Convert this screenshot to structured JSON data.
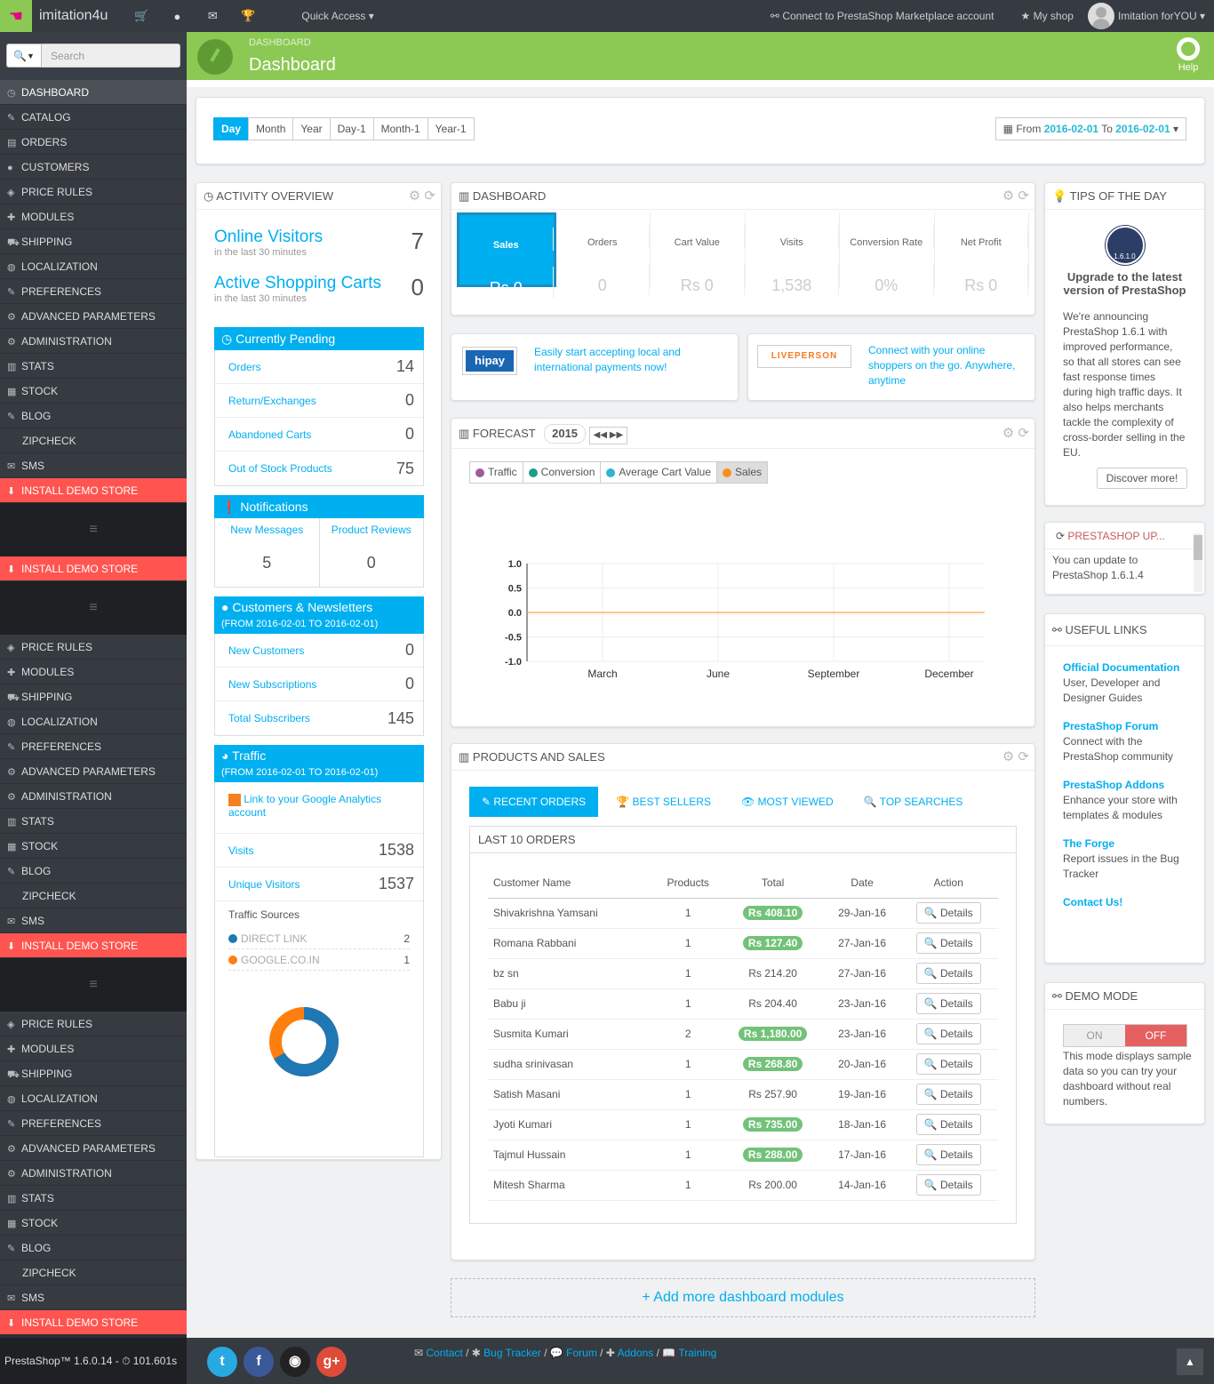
{
  "topbar": {
    "brand": "imitation4u",
    "quick_access": "Quick Access ▾",
    "connect": "Connect to PrestaShop Marketplace account",
    "my_shop": "My shop",
    "user": "Imitation forYOU ▾"
  },
  "sidebar": {
    "search_placeholder": "Search",
    "items": [
      "DASHBOARD",
      "CATALOG",
      "ORDERS",
      "CUSTOMERS",
      "PRICE RULES",
      "MODULES",
      "SHIPPING",
      "LOCALIZATION",
      "PREFERENCES",
      "ADVANCED PARAMETERS",
      "ADMINISTRATION",
      "STATS",
      "STOCK",
      "BLOG",
      "ZIPCHECK",
      "SMS"
    ],
    "repeat_items": [
      "PRICE RULES",
      "MODULES",
      "SHIPPING",
      "LOCALIZATION",
      "PREFERENCES",
      "ADVANCED PARAMETERS",
      "ADMINISTRATION",
      "STATS",
      "STOCK",
      "BLOG",
      "ZIPCHECK",
      "SMS"
    ],
    "demo": "INSTALL DEMO STORE",
    "footer": "PrestaShop™ 1.6.0.14 - ⏱ 101.601s"
  },
  "header": {
    "breadcrumb": "DASHBOARD",
    "title": "Dashboard",
    "help": "Help"
  },
  "datebar": {
    "buttons": [
      "Day",
      "Month",
      "Year",
      "Day-1",
      "Month-1",
      "Year-1"
    ],
    "from_label": "From",
    "from": "2016-02-01",
    "to_label": "To",
    "to": "2016-02-01"
  },
  "activity": {
    "title": "ACTIVITY OVERVIEW",
    "online_visitors": "Online Visitors",
    "online_visitors_value": "7",
    "online_sub": "in the last 30 minutes",
    "carts": "Active Shopping Carts",
    "carts_value": "0",
    "carts_sub": "in the last 30 minutes",
    "pending_title": "Currently Pending",
    "pending": [
      {
        "label": "Orders",
        "value": "14"
      },
      {
        "label": "Return/Exchanges",
        "value": "0"
      },
      {
        "label": "Abandoned Carts",
        "value": "0"
      },
      {
        "label": "Out of Stock Products",
        "value": "75"
      }
    ],
    "notif_title": "Notifications",
    "new_messages": "New Messages",
    "new_messages_value": "5",
    "product_reviews": "Product Reviews",
    "product_reviews_value": "0",
    "cust_title": "Customers & Newsletters",
    "cust_range": "(FROM 2016-02-01 TO 2016-02-01)",
    "cust": [
      {
        "label": "New Customers",
        "value": "0"
      },
      {
        "label": "New Subscriptions",
        "value": "0"
      },
      {
        "label": "Total Subscribers",
        "value": "145"
      }
    ],
    "traffic_title": "Traffic",
    "traffic_range": "(FROM 2016-02-01 TO 2016-02-01)",
    "ga_link": "Link to your Google Analytics account",
    "traffic": [
      {
        "label": "Visits",
        "value": "1538"
      },
      {
        "label": "Unique Visitors",
        "value": "1537"
      }
    ],
    "sources_title": "Traffic Sources",
    "sources": [
      {
        "label": "DIRECT LINK",
        "value": "2",
        "color": "#1f77b4"
      },
      {
        "label": "GOOGLE.CO.IN",
        "value": "1",
        "color": "#ff7f0e"
      }
    ]
  },
  "dashboard": {
    "title": "DASHBOARD",
    "kpis": [
      {
        "label": "Sales",
        "value": "Rs 0"
      },
      {
        "label": "Orders",
        "value": "0"
      },
      {
        "label": "Cart Value",
        "value": "Rs 0"
      },
      {
        "label": "Visits",
        "value": "1,538"
      },
      {
        "label": "Conversion Rate",
        "value": "0%"
      },
      {
        "label": "Net Profit",
        "value": "Rs 0"
      }
    ]
  },
  "ads": {
    "hipay_logo": "hipay",
    "hipay_text": "Easily start accepting local and international payments now!",
    "liveperson_logo": "LIVEPERSON",
    "liveperson_text": "Connect with your online shoppers on the go. Anywhere, anytime"
  },
  "forecast": {
    "title": "FORECAST",
    "year": "2015",
    "legend": [
      {
        "label": "Traffic",
        "color": "#9e5ba1"
      },
      {
        "label": "Conversion",
        "color": "#1a9e8f"
      },
      {
        "label": "Average Cart Value",
        "color": "#2fb5d2"
      },
      {
        "label": "Sales",
        "color": "#ff8c1a"
      }
    ]
  },
  "chart_data": {
    "type": "line",
    "x": [
      "March",
      "June",
      "September",
      "December"
    ],
    "yticks": [
      "1.0",
      "0.5",
      "0.0",
      "-0.5",
      "-1.0"
    ],
    "ylim": [
      -1,
      1
    ],
    "series": [
      {
        "name": "Sales",
        "values": [
          0,
          0,
          0,
          0
        ]
      }
    ]
  },
  "products": {
    "title": "PRODUCTS AND SALES",
    "tabs": [
      "RECENT ORDERS",
      "BEST SELLERS",
      "MOST VIEWED",
      "TOP SEARCHES"
    ],
    "subtitle": "LAST 10 ORDERS",
    "columns": [
      "Customer Name",
      "Products",
      "Total",
      "Date",
      "Action"
    ],
    "details_label": "Details",
    "orders": [
      {
        "name": "Shivakrishna Yamsani",
        "products": "1",
        "total": "Rs 408.10",
        "paid": true,
        "date": "29-Jan-16"
      },
      {
        "name": "Romana Rabbani",
        "products": "1",
        "total": "Rs 127.40",
        "paid": true,
        "date": "27-Jan-16"
      },
      {
        "name": "bz sn",
        "products": "1",
        "total": "Rs 214.20",
        "paid": false,
        "date": "27-Jan-16"
      },
      {
        "name": "Babu ji",
        "products": "1",
        "total": "Rs 204.40",
        "paid": false,
        "date": "23-Jan-16"
      },
      {
        "name": "Susmita Kumari",
        "products": "2",
        "total": "Rs 1,180.00",
        "paid": true,
        "date": "23-Jan-16"
      },
      {
        "name": "sudha srinivasan",
        "products": "1",
        "total": "Rs 268.80",
        "paid": true,
        "date": "20-Jan-16"
      },
      {
        "name": "Satish Masani",
        "products": "1",
        "total": "Rs 257.90",
        "paid": false,
        "date": "19-Jan-16"
      },
      {
        "name": "Jyoti Kumari",
        "products": "1",
        "total": "Rs 735.00",
        "paid": true,
        "date": "18-Jan-16"
      },
      {
        "name": "Tajmul Hussain",
        "products": "1",
        "total": "Rs 288.00",
        "paid": true,
        "date": "17-Jan-16"
      },
      {
        "name": "Mitesh Sharma",
        "products": "1",
        "total": "Rs 200.00",
        "paid": false,
        "date": "14-Jan-16"
      }
    ]
  },
  "add_modules": "Add more dashboard modules",
  "tips": {
    "title": "TIPS OF THE DAY",
    "badge": "1.6.1.0",
    "heading": "Upgrade to the latest version of PrestaShop",
    "body": "We're announcing PrestaShop 1.6.1 with improved performance, so that all stores can see fast response times during high traffic days. It also helps merchants tackle the complexity of cross-border selling in the EU.",
    "button": "Discover more!"
  },
  "update": {
    "title": "PRESTASHOP UP...",
    "text": "You can update to PrestaShop 1.6.1.4"
  },
  "useful": {
    "title": "USEFUL LINKS",
    "links": [
      {
        "head": "Official Documentation",
        "text": "User, Developer and Designer Guides"
      },
      {
        "head": "PrestaShop Forum",
        "text": "Connect with the PrestaShop community"
      },
      {
        "head": "PrestaShop Addons",
        "text": "Enhance your store with templates & modules"
      },
      {
        "head": "The Forge",
        "text": "Report issues in the Bug Tracker"
      },
      {
        "head": "Contact Us!",
        "text": ""
      }
    ]
  },
  "demo_mode": {
    "title": "DEMO MODE",
    "on": "ON",
    "off": "OFF",
    "text": "This mode displays sample data so you can try your dashboard without real numbers."
  },
  "footer": {
    "links": [
      "Contact",
      "Bug Tracker",
      "Forum",
      "Addons",
      "Training"
    ],
    "social": [
      "twitter-icon",
      "facebook-icon",
      "github-icon",
      "google-plus-icon"
    ]
  }
}
